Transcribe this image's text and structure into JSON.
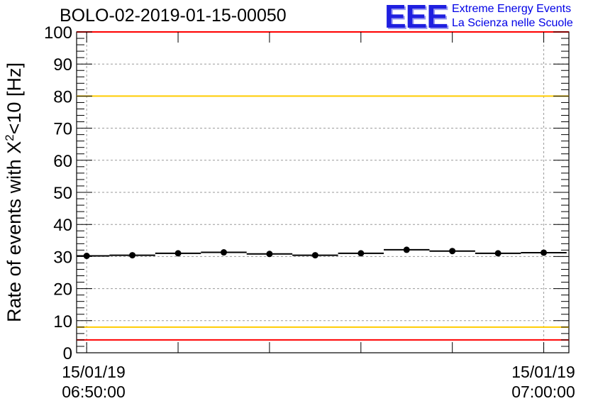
{
  "header": {
    "title": "BOLO-02-2019-01-15-00050",
    "logo": "EEE",
    "logo_line1": "Extreme Energy Events",
    "logo_line2": "La Scienza nelle Scuole"
  },
  "chart_data": {
    "type": "scatter",
    "ylabel_pre": "Rate of events with X",
    "ylabel_sup": "2",
    "ylabel_post": "<10 [Hz]",
    "ylim": [
      0,
      100
    ],
    "yticks": [
      0,
      10,
      20,
      30,
      40,
      50,
      60,
      70,
      80,
      90,
      100
    ],
    "grid": true,
    "x_first_label": [
      "15/01/19",
      "06:50:00"
    ],
    "x_last_label": [
      "15/01/19",
      "07:00:00"
    ],
    "x_unit": "minutes after 06:50:00",
    "xlim": [
      -0.22,
      10.55
    ],
    "bin_width": 1.0,
    "series": [
      {
        "x": [
          0,
          1,
          2,
          3,
          4,
          5,
          6,
          7,
          8,
          9,
          10
        ],
        "y": [
          30.2,
          30.4,
          31.0,
          31.3,
          30.8,
          30.4,
          31.0,
          32.1,
          31.7,
          31.0,
          31.2
        ]
      }
    ],
    "reference_lines": [
      {
        "y": 100,
        "color": "#ff0000"
      },
      {
        "y": 80,
        "color": "#ffcc00"
      },
      {
        "y": 8,
        "color": "#ffcc00"
      },
      {
        "y": 4,
        "color": "#ff0000"
      }
    ]
  }
}
